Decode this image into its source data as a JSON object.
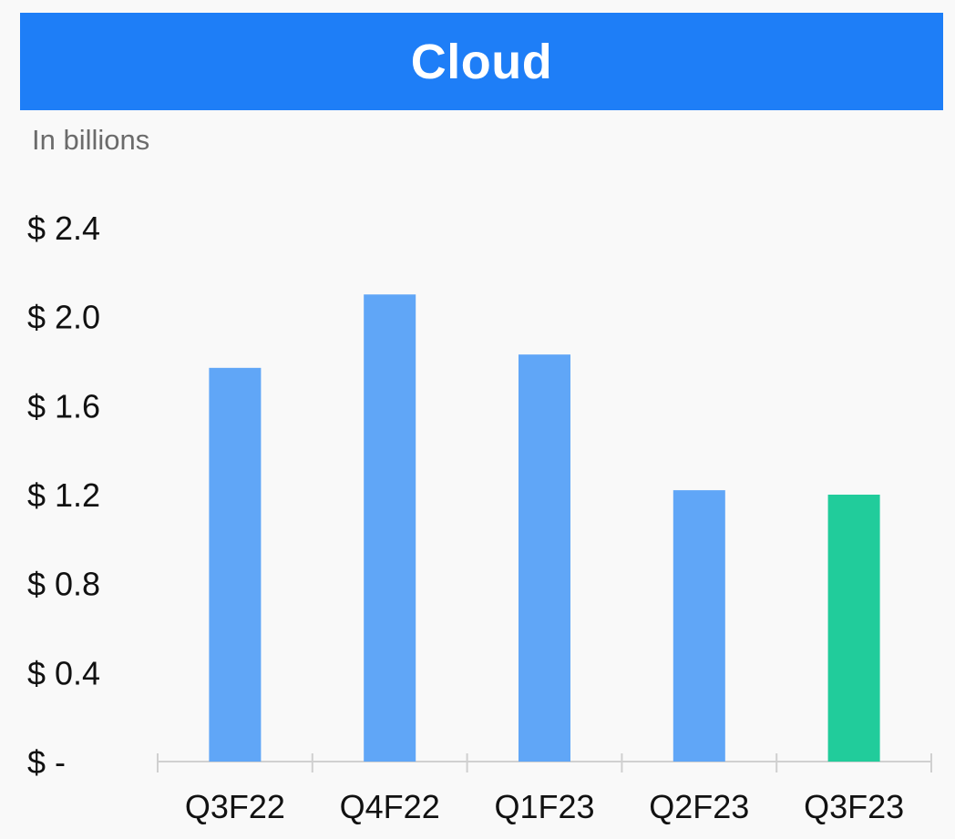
{
  "header": {
    "title": "Cloud",
    "subtitle": "In billions"
  },
  "colors": {
    "header_bg": "#1e7ef7",
    "bar_default": "#60a6f7",
    "bar_highlight": "#21cc9b",
    "axis": "#d0d0d0"
  },
  "chart_data": {
    "type": "bar",
    "title": "Cloud",
    "subtitle": "In billions",
    "categories": [
      "Q3F22",
      "Q4F22",
      "Q1F23",
      "Q2F23",
      "Q3F23"
    ],
    "values": [
      1.77,
      2.1,
      1.83,
      1.22,
      1.2
    ],
    "highlight_index": 4,
    "ylim": [
      0,
      2.4
    ],
    "yticks": [
      0,
      0.4,
      0.8,
      1.2,
      1.6,
      2.0,
      2.4
    ],
    "ytick_labels": [
      "$ -",
      "$ 0.4",
      "$ 0.8",
      "$ 1.2",
      "$ 1.6",
      "$ 2.0",
      "$ 2.4"
    ],
    "xlabel": "",
    "ylabel": "",
    "grid": false,
    "legend": "none"
  }
}
